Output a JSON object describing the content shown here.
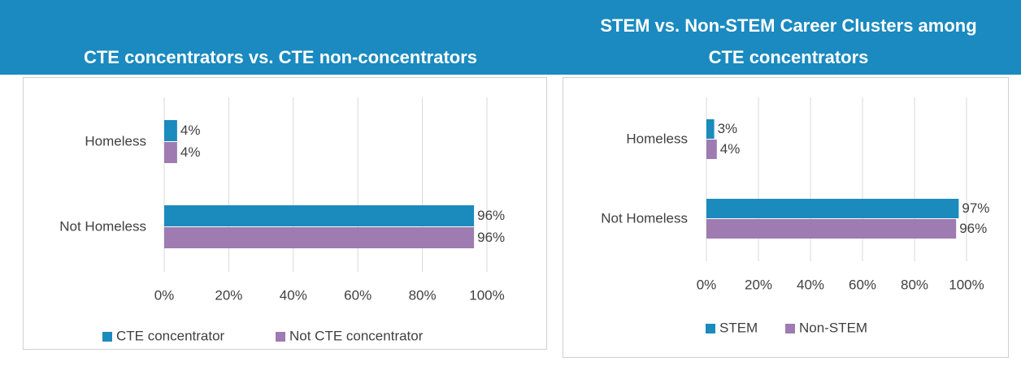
{
  "chart_data": [
    {
      "type": "bar",
      "orientation": "horizontal",
      "title": "CTE concentrators vs. CTE non-concentrators",
      "categories": [
        "Homeless",
        "Not Homeless"
      ],
      "series": [
        {
          "name": "CTE concentrator",
          "color": "#1b8bbd",
          "values": [
            4,
            96
          ],
          "value_labels": [
            "4%",
            "96%"
          ]
        },
        {
          "name": "Not CTE concentrator",
          "color": "#9e7bb0",
          "values": [
            4,
            96
          ],
          "value_labels": [
            "4%",
            "96%"
          ]
        }
      ],
      "xlim": [
        0,
        100
      ],
      "xticks": [
        {
          "value": 0,
          "label": "0%"
        },
        {
          "value": 20,
          "label": "20%"
        },
        {
          "value": 40,
          "label": "40%"
        },
        {
          "value": 60,
          "label": "60%"
        },
        {
          "value": 80,
          "label": "80%"
        },
        {
          "value": 100,
          "label": "100%"
        }
      ],
      "grid": true,
      "legend": "bottom"
    },
    {
      "type": "bar",
      "orientation": "horizontal",
      "title": [
        "STEM vs. Non-STEM Career Clusters among",
        "CTE concentrators"
      ],
      "categories": [
        "Homeless",
        "Not Homeless"
      ],
      "series": [
        {
          "name": "STEM",
          "color": "#1b8bbd",
          "values": [
            3,
            97
          ],
          "value_labels": [
            "3%",
            "97%"
          ]
        },
        {
          "name": "Non-STEM",
          "color": "#9e7bb0",
          "values": [
            4,
            96
          ],
          "value_labels": [
            "4%",
            "96%"
          ]
        }
      ],
      "xlim": [
        0,
        100
      ],
      "xticks": [
        {
          "value": 0,
          "label": "0%"
        },
        {
          "value": 20,
          "label": "20%"
        },
        {
          "value": 40,
          "label": "40%"
        },
        {
          "value": 60,
          "label": "60%"
        },
        {
          "value": 80,
          "label": "80%"
        },
        {
          "value": 100,
          "label": "100%"
        }
      ],
      "grid": true,
      "legend": "bottom"
    }
  ]
}
